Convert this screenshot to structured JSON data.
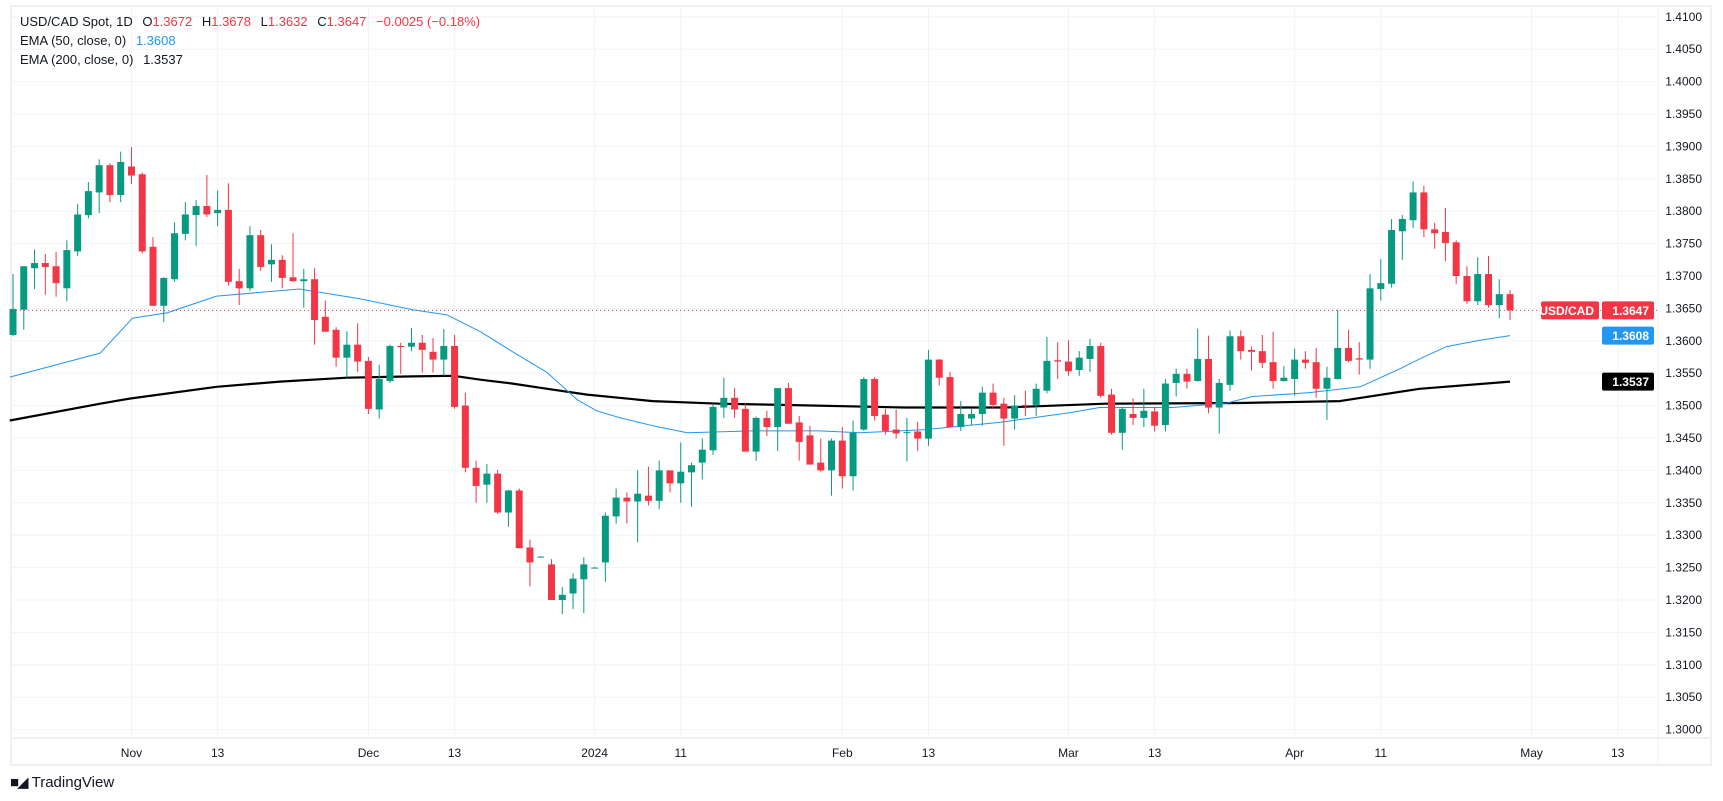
{
  "legend": {
    "symbol": "USD/CAD Spot, 1D",
    "o_label": "O",
    "o_value": "1.3672",
    "h_label": "H",
    "h_value": "1.3678",
    "l_label": "L",
    "l_value": "1.3632",
    "c_label": "C",
    "c_value": "1.3647",
    "change": "−0.0025 (−0.18%)",
    "ema50_label": "EMA (50, close, 0)",
    "ema50_value": "1.3608",
    "ema200_label": "EMA (200, close, 0)",
    "ema200_value": "1.3537"
  },
  "branding": {
    "logo_text": "TradingView",
    "logo_mark": "TV"
  },
  "colors": {
    "up": "#089981",
    "down": "#F23645",
    "ema50": "#2196F3",
    "ema200": "#000000",
    "grid": "#f0f3fa"
  },
  "chart_data": {
    "type": "candlestick",
    "title": "USD/CAD Spot, 1D",
    "ylim": [
      1.297,
      1.412
    ],
    "grid": true,
    "y_ticks": [
      "1.4100",
      "1.4050",
      "1.4000",
      "1.3950",
      "1.3900",
      "1.3850",
      "1.3800",
      "1.3750",
      "1.3700",
      "1.3650",
      "1.3600",
      "1.3550",
      "1.3500",
      "1.3450",
      "1.3400",
      "1.3350",
      "1.3300",
      "1.3250",
      "1.3200",
      "1.3150",
      "1.3100",
      "1.3050",
      "1.3000"
    ],
    "x_ticks": [
      {
        "label": "Nov",
        "bar": 11
      },
      {
        "label": "13",
        "bar": 19
      },
      {
        "label": "Dec",
        "bar": 33
      },
      {
        "label": "13",
        "bar": 41
      },
      {
        "label": "2024",
        "bar": 54
      },
      {
        "label": "11",
        "bar": 62
      },
      {
        "label": "Feb",
        "bar": 77
      },
      {
        "label": "13",
        "bar": 85
      },
      {
        "label": "Mar",
        "bar": 98
      },
      {
        "label": "13",
        "bar": 106
      },
      {
        "label": "Apr",
        "bar": 119
      },
      {
        "label": "11",
        "bar": 127
      },
      {
        "label": "May",
        "bar": 141
      },
      {
        "label": "13",
        "bar": 149
      }
    ],
    "ohlc_columns": [
      "open",
      "high",
      "low",
      "close"
    ],
    "candles": [
      [
        1.3609,
        1.3703,
        1.3607,
        1.3649
      ],
      [
        1.3648,
        1.3715,
        1.3617,
        1.3715
      ],
      [
        1.3712,
        1.3741,
        1.368,
        1.372
      ],
      [
        1.372,
        1.3734,
        1.3671,
        1.3714
      ],
      [
        1.3715,
        1.3737,
        1.3668,
        1.3689
      ],
      [
        1.3681,
        1.3755,
        1.3661,
        1.374
      ],
      [
        1.3738,
        1.3811,
        1.3731,
        1.3795
      ],
      [
        1.3794,
        1.3845,
        1.3789,
        1.3831
      ],
      [
        1.3829,
        1.388,
        1.3797,
        1.3871
      ],
      [
        1.3871,
        1.3874,
        1.3814,
        1.3825
      ],
      [
        1.3825,
        1.3892,
        1.3814,
        1.3876
      ],
      [
        1.3869,
        1.3899,
        1.3842,
        1.3855
      ],
      [
        1.3857,
        1.386,
        1.3735,
        1.3738
      ],
      [
        1.3745,
        1.376,
        1.3654,
        1.3654
      ],
      [
        1.3654,
        1.3698,
        1.3629,
        1.3697
      ],
      [
        1.3695,
        1.3783,
        1.3691,
        1.3766
      ],
      [
        1.3765,
        1.3814,
        1.3755,
        1.3795
      ],
      [
        1.3794,
        1.3817,
        1.3746,
        1.3808
      ],
      [
        1.3808,
        1.3856,
        1.3791,
        1.3795
      ],
      [
        1.3797,
        1.3832,
        1.3777,
        1.3802
      ],
      [
        1.3802,
        1.3843,
        1.3685,
        1.3691
      ],
      [
        1.3692,
        1.3711,
        1.3655,
        1.3681
      ],
      [
        1.3681,
        1.3777,
        1.3677,
        1.3763
      ],
      [
        1.3763,
        1.3771,
        1.3708,
        1.3714
      ],
      [
        1.3718,
        1.3749,
        1.3691,
        1.3725
      ],
      [
        1.3725,
        1.3732,
        1.3681,
        1.3697
      ],
      [
        1.3698,
        1.3766,
        1.3691,
        1.3692
      ],
      [
        1.3692,
        1.3711,
        1.3651,
        1.3695
      ],
      [
        1.3695,
        1.3712,
        1.3594,
        1.3632
      ],
      [
        1.3637,
        1.3662,
        1.3614,
        1.3614
      ],
      [
        1.3617,
        1.3621,
        1.356,
        1.3574
      ],
      [
        1.3574,
        1.3615,
        1.3543,
        1.3594
      ],
      [
        1.3594,
        1.3627,
        1.3552,
        1.3568
      ],
      [
        1.3569,
        1.3575,
        1.3487,
        1.3495
      ],
      [
        1.3494,
        1.3563,
        1.348,
        1.3541
      ],
      [
        1.3538,
        1.3594,
        1.3535,
        1.3592
      ],
      [
        1.3592,
        1.3597,
        1.3549,
        1.3591
      ],
      [
        1.3591,
        1.362,
        1.3584,
        1.3597
      ],
      [
        1.3597,
        1.3609,
        1.3551,
        1.3586
      ],
      [
        1.3583,
        1.3604,
        1.3551,
        1.3571
      ],
      [
        1.3571,
        1.3618,
        1.3546,
        1.3592
      ],
      [
        1.3592,
        1.3609,
        1.3495,
        1.3498
      ],
      [
        1.35,
        1.352,
        1.3397,
        1.3404
      ],
      [
        1.3404,
        1.3415,
        1.335,
        1.3376
      ],
      [
        1.3378,
        1.341,
        1.335,
        1.3395
      ],
      [
        1.3395,
        1.3401,
        1.3333,
        1.3335
      ],
      [
        1.3335,
        1.337,
        1.3313,
        1.3369
      ],
      [
        1.3369,
        1.3372,
        1.328,
        1.328
      ],
      [
        1.3281,
        1.3293,
        1.3221,
        1.3258
      ],
      [
        1.3267,
        1.3268,
        1.3266,
        1.3267
      ],
      [
        1.3255,
        1.3263,
        1.32,
        1.32
      ],
      [
        1.32,
        1.322,
        1.3178,
        1.3208
      ],
      [
        1.321,
        1.3241,
        1.3186,
        1.3233
      ],
      [
        1.3232,
        1.3266,
        1.318,
        1.3255
      ],
      [
        1.325,
        1.3251,
        1.3249,
        1.325
      ],
      [
        1.3258,
        1.3335,
        1.3228,
        1.333
      ],
      [
        1.3329,
        1.3372,
        1.3318,
        1.3358
      ],
      [
        1.3358,
        1.3366,
        1.3318,
        1.3352
      ],
      [
        1.3352,
        1.34,
        1.3289,
        1.3364
      ],
      [
        1.3361,
        1.3406,
        1.3346,
        1.3353
      ],
      [
        1.3353,
        1.3415,
        1.334,
        1.34
      ],
      [
        1.34,
        1.34,
        1.3366,
        1.338
      ],
      [
        1.338,
        1.3443,
        1.335,
        1.3398
      ],
      [
        1.3397,
        1.3412,
        1.3344,
        1.3408
      ],
      [
        1.3412,
        1.3449,
        1.3386,
        1.3432
      ],
      [
        1.3431,
        1.3503,
        1.3424,
        1.3498
      ],
      [
        1.3497,
        1.3543,
        1.3481,
        1.3512
      ],
      [
        1.3512,
        1.3527,
        1.3481,
        1.3494
      ],
      [
        1.3495,
        1.3503,
        1.3429,
        1.3429
      ],
      [
        1.3429,
        1.3483,
        1.3415,
        1.3481
      ],
      [
        1.3481,
        1.3492,
        1.3453,
        1.3467
      ],
      [
        1.3467,
        1.3527,
        1.343,
        1.3527
      ],
      [
        1.3527,
        1.3535,
        1.3472,
        1.3472
      ],
      [
        1.3474,
        1.3484,
        1.3415,
        1.3444
      ],
      [
        1.3454,
        1.3469,
        1.3409,
        1.3409
      ],
      [
        1.3412,
        1.3449,
        1.3398,
        1.34
      ],
      [
        1.34,
        1.3449,
        1.3361,
        1.3446
      ],
      [
        1.3446,
        1.3467,
        1.3372,
        1.3391
      ],
      [
        1.3391,
        1.3477,
        1.3369,
        1.3458
      ],
      [
        1.3463,
        1.3544,
        1.3461,
        1.3541
      ],
      [
        1.3541,
        1.3544,
        1.3477,
        1.3484
      ],
      [
        1.3486,
        1.3495,
        1.3455,
        1.3461
      ],
      [
        1.3463,
        1.3494,
        1.3449,
        1.3457
      ],
      [
        1.3458,
        1.3481,
        1.3414,
        1.3459
      ],
      [
        1.346,
        1.3475,
        1.343,
        1.3449
      ],
      [
        1.3449,
        1.3586,
        1.3438,
        1.3571
      ],
      [
        1.3571,
        1.3572,
        1.3531,
        1.3543
      ],
      [
        1.3544,
        1.3552,
        1.3467,
        1.3467
      ],
      [
        1.3467,
        1.3507,
        1.3461,
        1.3487
      ],
      [
        1.348,
        1.3495,
        1.347,
        1.3487
      ],
      [
        1.3487,
        1.3529,
        1.3469,
        1.352
      ],
      [
        1.352,
        1.3534,
        1.3495,
        1.3501
      ],
      [
        1.3503,
        1.3512,
        1.3438,
        1.348
      ],
      [
        1.348,
        1.3516,
        1.3463,
        1.35
      ],
      [
        1.3501,
        1.3523,
        1.3484,
        1.3499
      ],
      [
        1.3501,
        1.3534,
        1.3484,
        1.3526
      ],
      [
        1.3523,
        1.3606,
        1.3519,
        1.3569
      ],
      [
        1.357,
        1.3598,
        1.3541,
        1.3568
      ],
      [
        1.3568,
        1.3601,
        1.3546,
        1.3553
      ],
      [
        1.3555,
        1.3584,
        1.3546,
        1.3574
      ],
      [
        1.3572,
        1.3603,
        1.3552,
        1.3592
      ],
      [
        1.3592,
        1.3597,
        1.3512,
        1.3515
      ],
      [
        1.3517,
        1.3526,
        1.3455,
        1.3458
      ],
      [
        1.3458,
        1.3498,
        1.3432,
        1.3495
      ],
      [
        1.3487,
        1.3511,
        1.347,
        1.3481
      ],
      [
        1.3481,
        1.3526,
        1.3467,
        1.3492
      ],
      [
        1.3491,
        1.3498,
        1.346,
        1.3469
      ],
      [
        1.347,
        1.3541,
        1.346,
        1.3534
      ],
      [
        1.3535,
        1.3557,
        1.3514,
        1.3549
      ],
      [
        1.3549,
        1.3557,
        1.3526,
        1.3537
      ],
      [
        1.3538,
        1.3619,
        1.3537,
        1.3572
      ],
      [
        1.3572,
        1.3608,
        1.3488,
        1.3497
      ],
      [
        1.3497,
        1.3541,
        1.3457,
        1.3535
      ],
      [
        1.3532,
        1.3616,
        1.3523,
        1.3607
      ],
      [
        1.3607,
        1.3616,
        1.3571,
        1.3584
      ],
      [
        1.3586,
        1.3591,
        1.3554,
        1.3583
      ],
      [
        1.3584,
        1.3609,
        1.3558,
        1.3566
      ],
      [
        1.3567,
        1.3614,
        1.3526,
        1.3538
      ],
      [
        1.3538,
        1.3561,
        1.3537,
        1.3543
      ],
      [
        1.3541,
        1.3588,
        1.3515,
        1.3571
      ],
      [
        1.3571,
        1.3584,
        1.3557,
        1.3566
      ],
      [
        1.3567,
        1.3589,
        1.3512,
        1.3526
      ],
      [
        1.3526,
        1.356,
        1.3478,
        1.3543
      ],
      [
        1.3541,
        1.3648,
        1.354,
        1.3589
      ],
      [
        1.3589,
        1.3617,
        1.3567,
        1.3569
      ],
      [
        1.3573,
        1.3598,
        1.3548,
        1.3571
      ],
      [
        1.3571,
        1.3703,
        1.3557,
        1.3681
      ],
      [
        1.368,
        1.3726,
        1.3662,
        1.3689
      ],
      [
        1.3688,
        1.3788,
        1.3682,
        1.3771
      ],
      [
        1.3769,
        1.3794,
        1.3725,
        1.3788
      ],
      [
        1.3786,
        1.3846,
        1.3774,
        1.3829
      ],
      [
        1.3829,
        1.3839,
        1.376,
        1.3772
      ],
      [
        1.3772,
        1.3782,
        1.3742,
        1.3766
      ],
      [
        1.3768,
        1.3805,
        1.3723,
        1.3751
      ],
      [
        1.3752,
        1.3755,
        1.3688,
        1.37
      ],
      [
        1.37,
        1.3715,
        1.3657,
        1.3661
      ],
      [
        1.3661,
        1.3729,
        1.3655,
        1.3703
      ],
      [
        1.3703,
        1.3731,
        1.3651,
        1.3655
      ],
      [
        1.3655,
        1.3695,
        1.3635,
        1.3672
      ],
      [
        1.3672,
        1.3678,
        1.3632,
        1.3647
      ]
    ],
    "series": [
      {
        "name": "EMA (50, close, 0)",
        "points": [
          [
            -0.3,
            1.3544
          ],
          [
            8.1,
            1.3581
          ],
          [
            11.1,
            1.3635
          ],
          [
            14.3,
            1.3643
          ],
          [
            18.9,
            1.3669
          ],
          [
            26.6,
            1.368
          ],
          [
            32.2,
            1.3665
          ],
          [
            37.1,
            1.3648
          ],
          [
            40.3,
            1.364
          ],
          [
            43.4,
            1.3614
          ],
          [
            46.4,
            1.3583
          ],
          [
            49.6,
            1.3551
          ],
          [
            52.4,
            1.3509
          ],
          [
            54.2,
            1.3492
          ],
          [
            56.4,
            1.3481
          ],
          [
            59.4,
            1.3469
          ],
          [
            62.6,
            1.3458
          ],
          [
            68.7,
            1.3461
          ],
          [
            74.9,
            1.3461
          ],
          [
            78.6,
            1.3458
          ],
          [
            84.7,
            1.3463
          ],
          [
            91.6,
            1.3474
          ],
          [
            98.1,
            1.3489
          ],
          [
            100.9,
            1.3497
          ],
          [
            107.7,
            1.3497
          ],
          [
            112.7,
            1.3504
          ],
          [
            115.1,
            1.3514
          ],
          [
            120.4,
            1.352
          ],
          [
            125.1,
            1.3529
          ],
          [
            128.8,
            1.3557
          ],
          [
            130.6,
            1.3572
          ],
          [
            133.1,
            1.3591
          ],
          [
            136.2,
            1.3601
          ],
          [
            139,
            1.3608
          ]
        ]
      },
      {
        "name": "EMA (200, close, 0)",
        "points": [
          [
            -0.3,
            1.3477
          ],
          [
            8.1,
            1.3503
          ],
          [
            10.9,
            1.3511
          ],
          [
            18.9,
            1.3529
          ],
          [
            24.8,
            1.3537
          ],
          [
            31,
            1.3543
          ],
          [
            37.1,
            1.3545
          ],
          [
            40.9,
            1.3546
          ],
          [
            43.4,
            1.354
          ],
          [
            46.4,
            1.3534
          ],
          [
            49.6,
            1.3526
          ],
          [
            53.3,
            1.3517
          ],
          [
            59.4,
            1.3507
          ],
          [
            65.6,
            1.3503
          ],
          [
            71.9,
            1.3501
          ],
          [
            82.8,
            1.3497
          ],
          [
            92.1,
            1.3497
          ],
          [
            101.4,
            1.3503
          ],
          [
            113.9,
            1.3504
          ],
          [
            123.2,
            1.3507
          ],
          [
            130.6,
            1.3526
          ],
          [
            139,
            1.3537
          ]
        ]
      }
    ],
    "last_price": {
      "label": "USD/CAD",
      "value": "1.3647",
      "price": 1.3647
    },
    "ema50_tag": {
      "value": "1.3608",
      "price": 1.3608
    },
    "ema200_tag": {
      "value": "1.3537",
      "price": 1.3537
    }
  }
}
